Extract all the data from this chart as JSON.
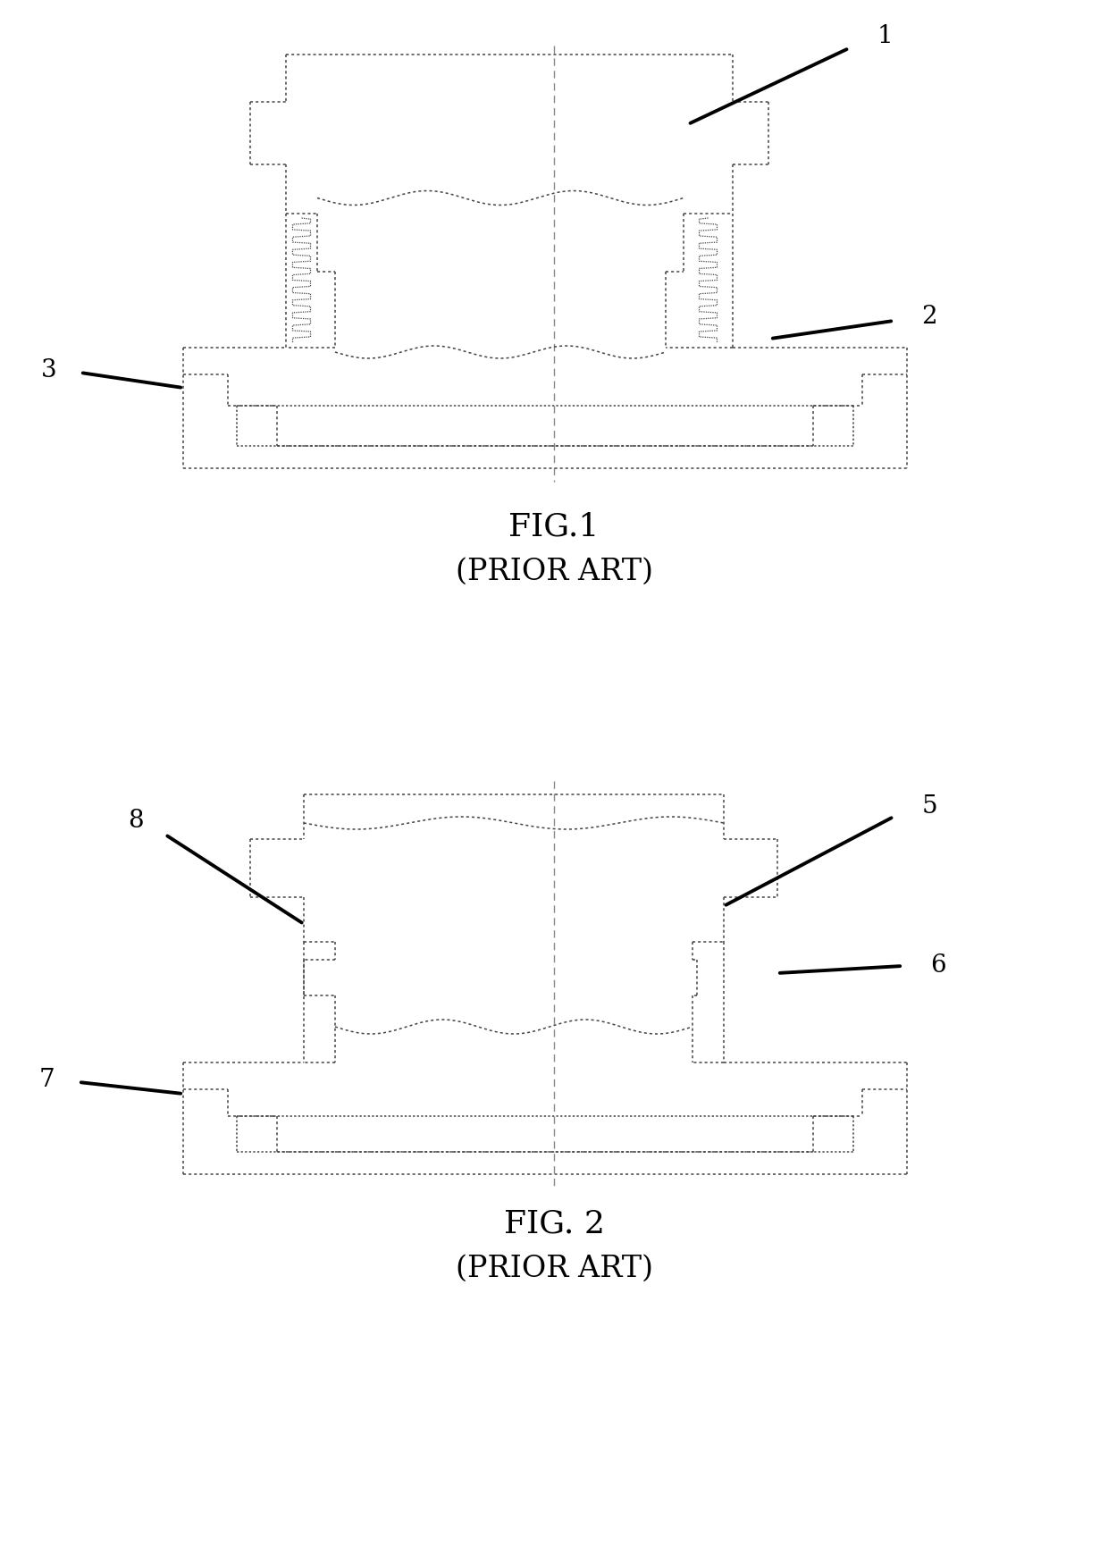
{
  "fig_width": 12.4,
  "fig_height": 17.49,
  "dpi": 100,
  "bg_color": "#ffffff",
  "dc": "#444444",
  "lc": "#000000",
  "label_fs": 20,
  "caption_fs": 26,
  "subcap_fs": 24,
  "fig1_caption": "FIG.1",
  "fig1_subcap": "(PRIOR ART)",
  "fig2_caption": "FIG. 2",
  "fig2_subcap": "(PRIOR ART)"
}
